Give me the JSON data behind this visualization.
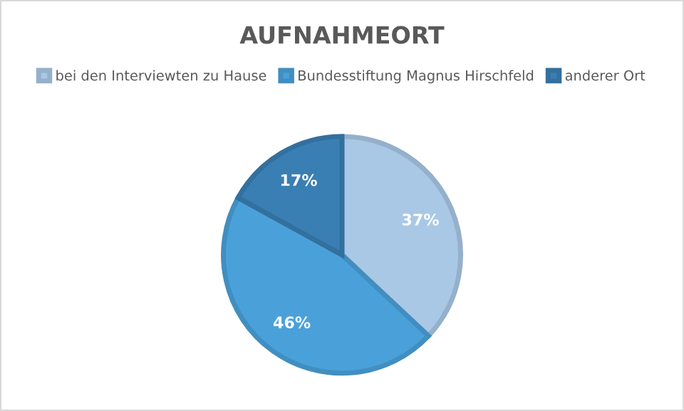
{
  "chart_data": {
    "type": "pie",
    "title": "AUFNAHMEORT",
    "categories": [
      "bei den Interviewten zu Hause",
      "Bundesstiftung Magnus Hirschfeld",
      "anderer Ort"
    ],
    "values": [
      37,
      46,
      17
    ],
    "colors": [
      "#a9c8e6",
      "#4aa1da",
      "#3a7fb3"
    ],
    "value_labels": [
      "37%",
      "46%",
      "17%"
    ],
    "legend": "top"
  }
}
